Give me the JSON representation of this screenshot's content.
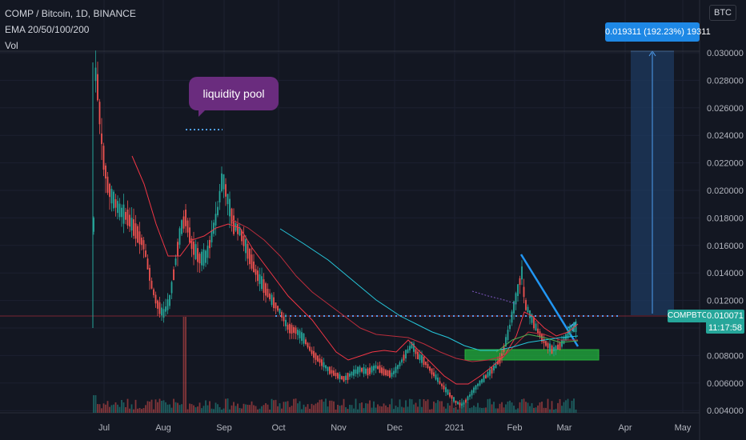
{
  "header": {
    "title": "COMP / Bitcoin, 1D, BINANCE",
    "indicator": "EMA 20/50/100/200",
    "volume": "Vol"
  },
  "currency_badge": "BTC",
  "measure_label": "0.019311 (192.23%) 19311",
  "price_tag": {
    "symbol": "COMPBTC",
    "price": "0.010071",
    "countdown": "11:17:58"
  },
  "annotation": {
    "text": "liquidity pool"
  },
  "colors": {
    "background": "#131722",
    "up": "#26a69a",
    "down": "#ef5350",
    "ema20": "#f23645",
    "ema50": "#9c27b0",
    "ema100": "#26c6da",
    "accent": "#1e88e5",
    "zone": "#1f9f3a"
  },
  "chart_data": {
    "type": "candlestick",
    "title": "COMP / Bitcoin, 1D, BINANCE",
    "x_ticks": [
      "Jul",
      "Aug",
      "Sep",
      "Oct",
      "Nov",
      "Dec",
      "2021",
      "Feb",
      "Mar",
      "Apr",
      "May"
    ],
    "x_tick_positions": [
      130,
      204,
      280,
      348,
      423,
      493,
      568,
      643,
      705,
      781,
      853
    ],
    "y_ticks": [
      "0.030000",
      "0.028000",
      "0.026000",
      "0.024000",
      "0.022000",
      "0.020000",
      "0.018000",
      "0.016000",
      "0.014000",
      "0.012000",
      "0.010000",
      "0.008000",
      "0.006000",
      "0.004000"
    ],
    "y_range": [
      0.0032,
      0.0318
    ],
    "x_labels_monthly_close": [
      {
        "x": "Jul",
        "close": 0.0185
      },
      {
        "x": "Aug",
        "close": 0.011
      },
      {
        "x": "Sep",
        "close": 0.017
      },
      {
        "x": "Oct",
        "close": 0.0105
      },
      {
        "x": "Nov",
        "close": 0.0064
      },
      {
        "x": "Dec",
        "close": 0.0071
      },
      {
        "x": "2021",
        "close": 0.0045
      },
      {
        "x": "Feb",
        "close": 0.012
      },
      {
        "x": "Mar",
        "close": 0.0092
      }
    ],
    "key_levels": {
      "all_time_high": 0.0293,
      "liquidity_pool": 0.0236,
      "current_price": 0.010071,
      "measure_target": 0.0293,
      "support_zone": [
        0.0069,
        0.0076
      ]
    },
    "series": [
      {
        "name": "EMA 20"
      },
      {
        "name": "EMA 50"
      },
      {
        "name": "EMA 100"
      },
      {
        "name": "EMA 200"
      }
    ],
    "legend_position": "top-left"
  }
}
